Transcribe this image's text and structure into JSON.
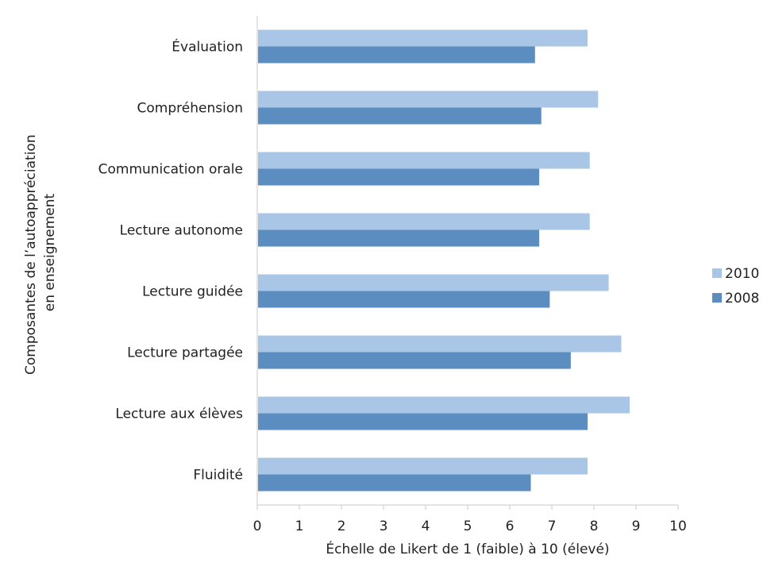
{
  "chart_data": {
    "type": "bar",
    "orientation": "horizontal",
    "categories": [
      "Évaluation",
      "Compréhension",
      "Communication orale",
      "Lecture autonome",
      "Lecture guidée",
      "Lecture partagée",
      "Lecture aux élèves",
      "Fluidité"
    ],
    "series": [
      {
        "name": "2010",
        "color": "#a9c6e6",
        "values": [
          7.85,
          8.1,
          7.9,
          7.9,
          8.35,
          8.65,
          8.85,
          7.85
        ]
      },
      {
        "name": "2008",
        "color": "#5b8dc0",
        "values": [
          6.6,
          6.75,
          6.7,
          6.7,
          6.95,
          7.45,
          7.85,
          6.5
        ]
      }
    ],
    "xlim": [
      0,
      10
    ],
    "xticks": [
      "0",
      "1",
      "2",
      "3",
      "4",
      "5",
      "6",
      "7",
      "8",
      "9",
      "10"
    ],
    "xlabel": "Échelle de Likert de 1 (faible) à 10 (élevé)",
    "ylabel_lines": [
      "Composantes de l’autoappréciation",
      "en enseignement"
    ],
    "grid": false,
    "legend_position": "right"
  }
}
